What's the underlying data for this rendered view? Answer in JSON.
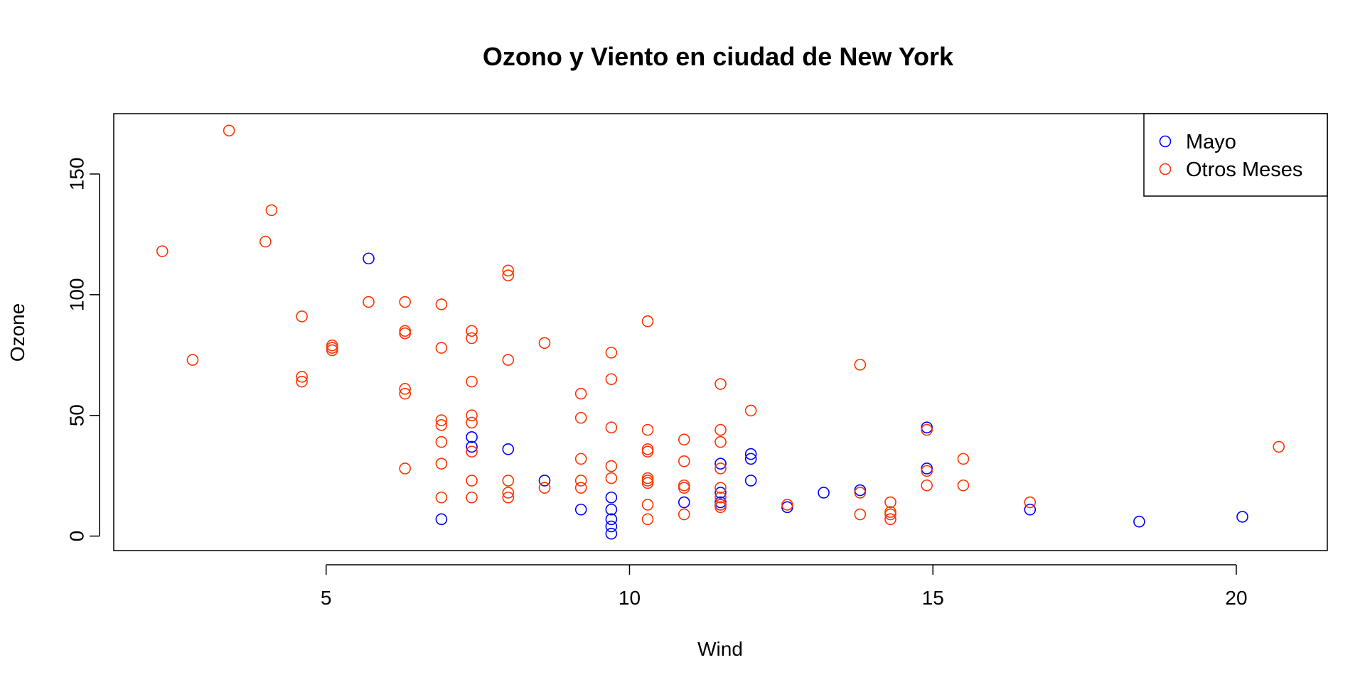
{
  "chart_data": {
    "type": "scatter",
    "title": "Ozono y Viento en ciudad de New York",
    "xlabel": "Wind",
    "ylabel": "Ozone",
    "xlim": [
      1.5,
      21.5
    ],
    "ylim": [
      -6,
      175
    ],
    "xticks": [
      5,
      10,
      15,
      20
    ],
    "yticks": [
      0,
      50,
      100,
      150
    ],
    "grid": false,
    "legend_position": "top-right",
    "series": [
      {
        "name": "Mayo",
        "color": "#0000ff",
        "points": [
          [
            7.4,
            41
          ],
          [
            8.0,
            36
          ],
          [
            12.6,
            12
          ],
          [
            11.5,
            18
          ],
          [
            14.9,
            28
          ],
          [
            8.6,
            23
          ],
          [
            13.8,
            19
          ],
          [
            20.1,
            8
          ],
          [
            9.7,
            7
          ],
          [
            9.2,
            11
          ],
          [
            10.9,
            14
          ],
          [
            13.2,
            18
          ],
          [
            11.5,
            14
          ],
          [
            12.0,
            34
          ],
          [
            18.4,
            6
          ],
          [
            11.5,
            30
          ],
          [
            9.7,
            11
          ],
          [
            9.7,
            1
          ],
          [
            16.6,
            11
          ],
          [
            9.7,
            4
          ],
          [
            12.0,
            32
          ],
          [
            12.0,
            23
          ],
          [
            14.9,
            45
          ],
          [
            5.7,
            115
          ],
          [
            7.4,
            37
          ],
          [
            6.9,
            7
          ],
          [
            9.7,
            16
          ],
          [
            11.5,
            13
          ]
        ]
      },
      {
        "name": "Otros Meses",
        "color": "#ff3300",
        "points": [
          [
            2.3,
            118
          ],
          [
            2.8,
            73
          ],
          [
            3.4,
            168
          ],
          [
            4.0,
            122
          ],
          [
            4.1,
            135
          ],
          [
            4.6,
            91
          ],
          [
            4.6,
            66
          ],
          [
            4.6,
            64
          ],
          [
            5.1,
            79
          ],
          [
            5.1,
            78
          ],
          [
            5.1,
            77
          ],
          [
            5.7,
            97
          ],
          [
            6.3,
            97
          ],
          [
            6.3,
            85
          ],
          [
            6.3,
            84
          ],
          [
            6.3,
            61
          ],
          [
            6.3,
            59
          ],
          [
            6.3,
            28
          ],
          [
            6.9,
            96
          ],
          [
            6.9,
            78
          ],
          [
            6.9,
            48
          ],
          [
            6.9,
            46
          ],
          [
            6.9,
            39
          ],
          [
            6.9,
            30
          ],
          [
            6.9,
            16
          ],
          [
            7.4,
            85
          ],
          [
            7.4,
            82
          ],
          [
            7.4,
            64
          ],
          [
            7.4,
            50
          ],
          [
            7.4,
            47
          ],
          [
            7.4,
            35
          ],
          [
            7.4,
            23
          ],
          [
            7.4,
            16
          ],
          [
            8.0,
            110
          ],
          [
            8.0,
            108
          ],
          [
            8.0,
            73
          ],
          [
            8.0,
            23
          ],
          [
            8.0,
            18
          ],
          [
            8.0,
            16
          ],
          [
            8.6,
            80
          ],
          [
            8.6,
            20
          ],
          [
            9.2,
            59
          ],
          [
            9.2,
            49
          ],
          [
            9.2,
            32
          ],
          [
            9.2,
            23
          ],
          [
            9.2,
            20
          ],
          [
            9.7,
            76
          ],
          [
            9.7,
            65
          ],
          [
            9.7,
            45
          ],
          [
            9.7,
            29
          ],
          [
            9.7,
            24
          ],
          [
            10.3,
            89
          ],
          [
            10.3,
            44
          ],
          [
            10.3,
            36
          ],
          [
            10.3,
            35
          ],
          [
            10.3,
            24
          ],
          [
            10.3,
            23
          ],
          [
            10.3,
            22
          ],
          [
            10.3,
            13
          ],
          [
            10.3,
            7
          ],
          [
            10.9,
            40
          ],
          [
            10.9,
            31
          ],
          [
            10.9,
            21
          ],
          [
            10.9,
            20
          ],
          [
            10.9,
            9
          ],
          [
            11.5,
            63
          ],
          [
            11.5,
            44
          ],
          [
            11.5,
            39
          ],
          [
            11.5,
            28
          ],
          [
            11.5,
            20
          ],
          [
            11.5,
            16
          ],
          [
            11.5,
            13
          ],
          [
            11.5,
            12
          ],
          [
            12.0,
            52
          ],
          [
            12.6,
            13
          ],
          [
            13.8,
            71
          ],
          [
            13.8,
            18
          ],
          [
            13.8,
            9
          ],
          [
            14.3,
            14
          ],
          [
            14.3,
            10
          ],
          [
            14.3,
            9
          ],
          [
            14.3,
            7
          ],
          [
            14.9,
            44
          ],
          [
            14.9,
            27
          ],
          [
            14.9,
            21
          ],
          [
            15.5,
            32
          ],
          [
            15.5,
            21
          ],
          [
            16.6,
            14
          ],
          [
            20.7,
            37
          ]
        ]
      }
    ]
  }
}
